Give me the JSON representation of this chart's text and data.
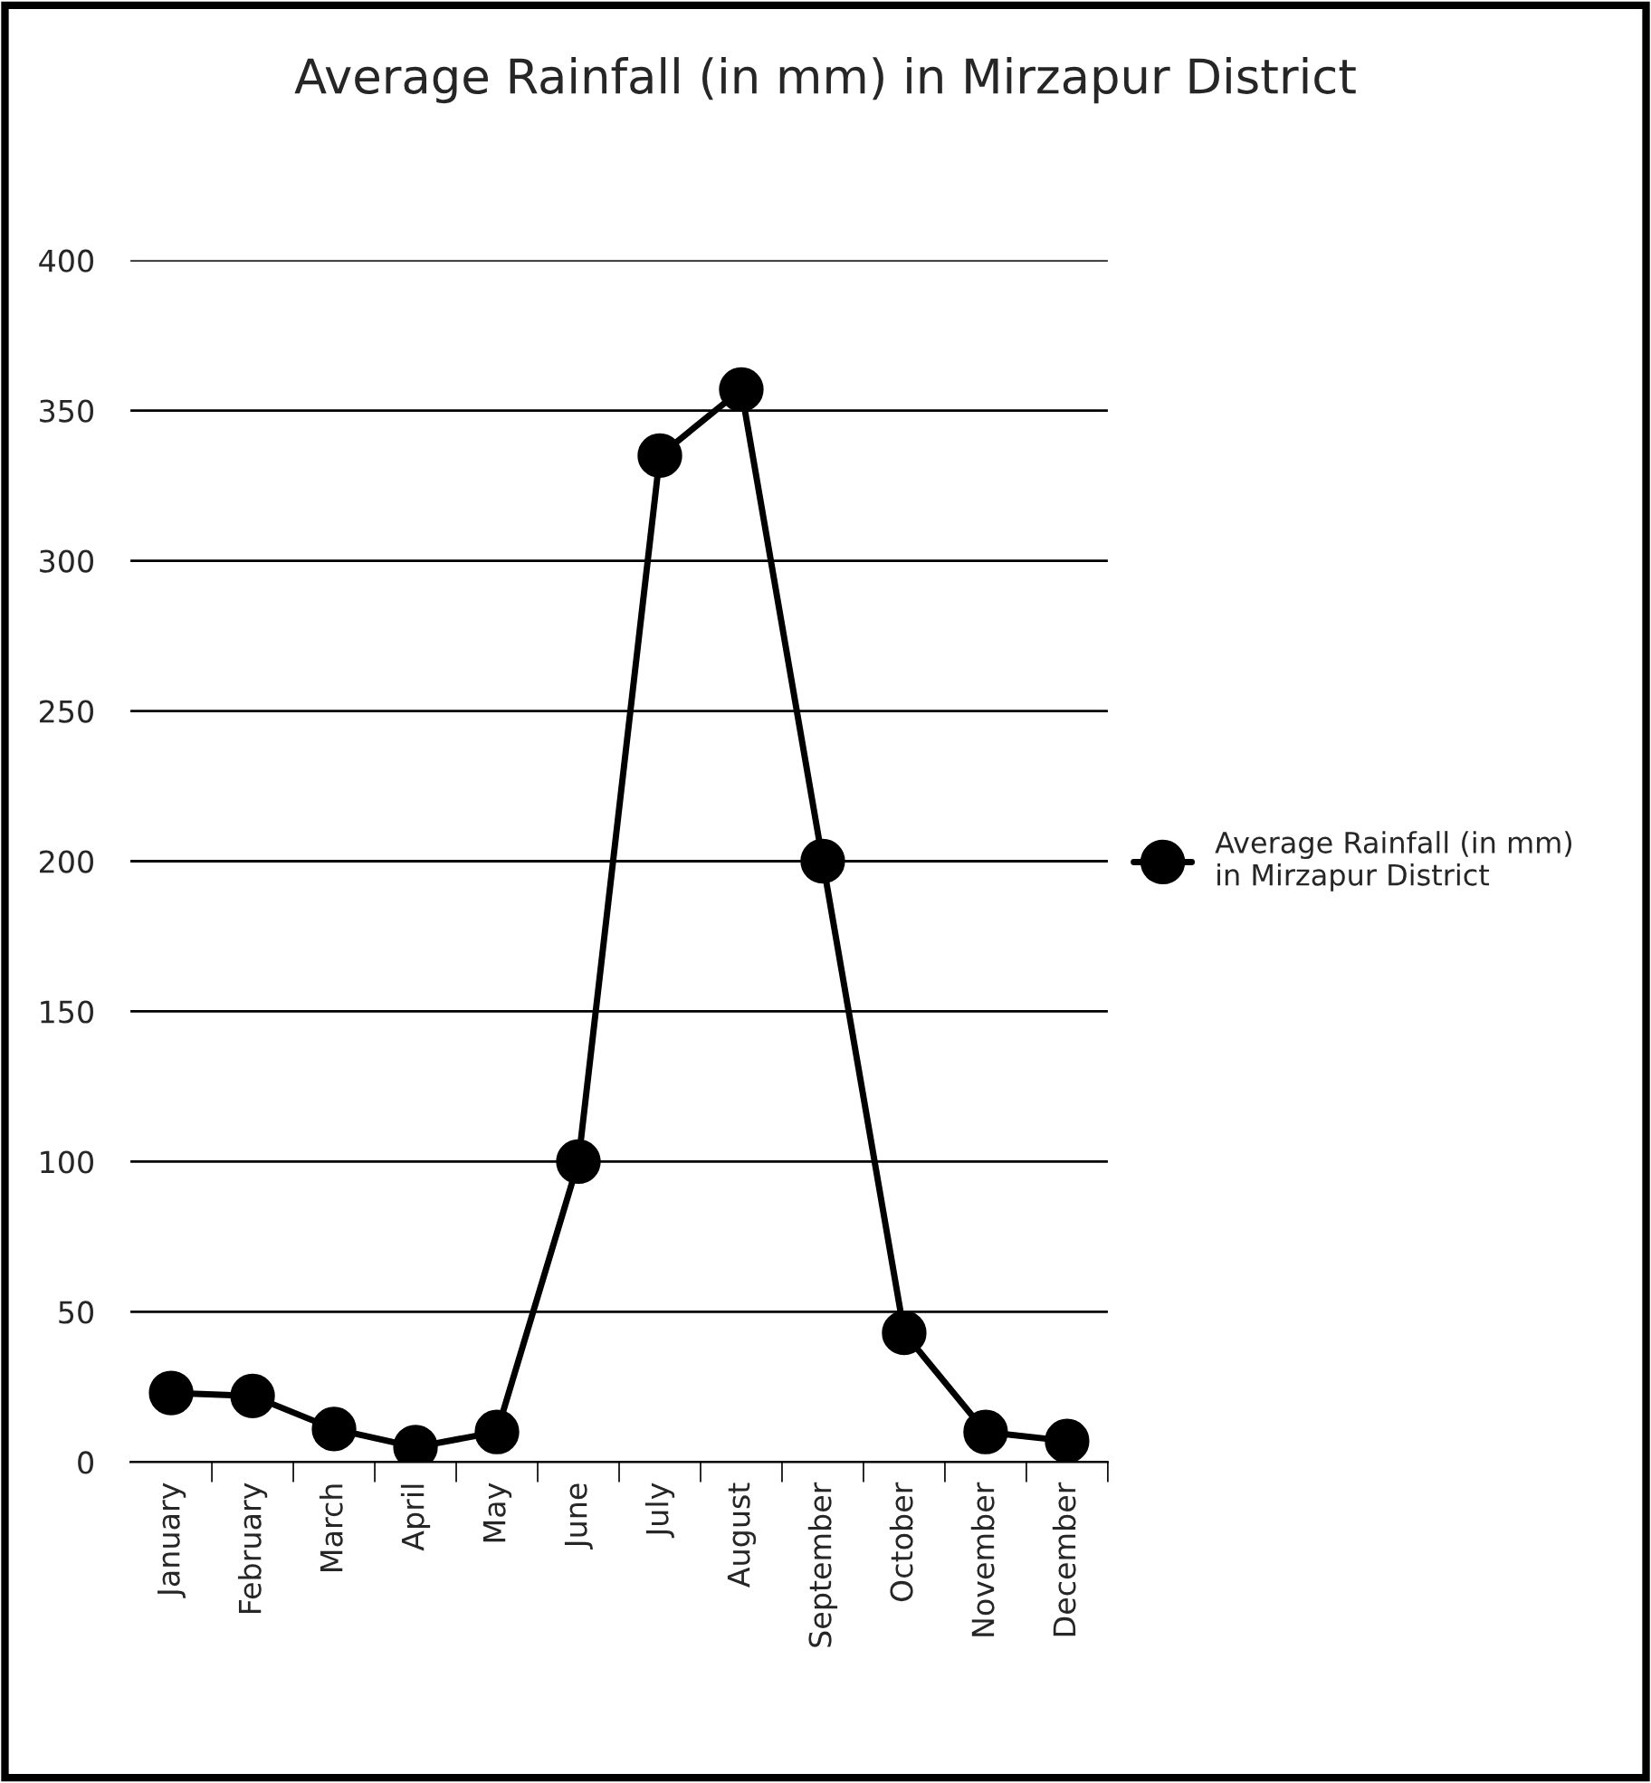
{
  "chart_data": {
    "type": "line",
    "title": "Average Rainfall (in mm) in Mirzapur District",
    "categories": [
      "January",
      "February",
      "March",
      "April",
      "May",
      "June",
      "July",
      "August",
      "September",
      "October",
      "November",
      "December"
    ],
    "series": [
      {
        "name": "Average Rainfall (in mm)\nin Mirzapur District",
        "color": "#000000",
        "values": [
          23,
          22,
          11,
          5,
          10,
          100,
          335,
          357,
          200,
          43,
          10,
          7
        ]
      }
    ],
    "ylim": [
      0,
      400
    ],
    "yticks": [
      0,
      50,
      100,
      150,
      200,
      250,
      300,
      350,
      400
    ],
    "grid": "y",
    "legend": "right",
    "marker": "circle",
    "line_style": "solid"
  }
}
